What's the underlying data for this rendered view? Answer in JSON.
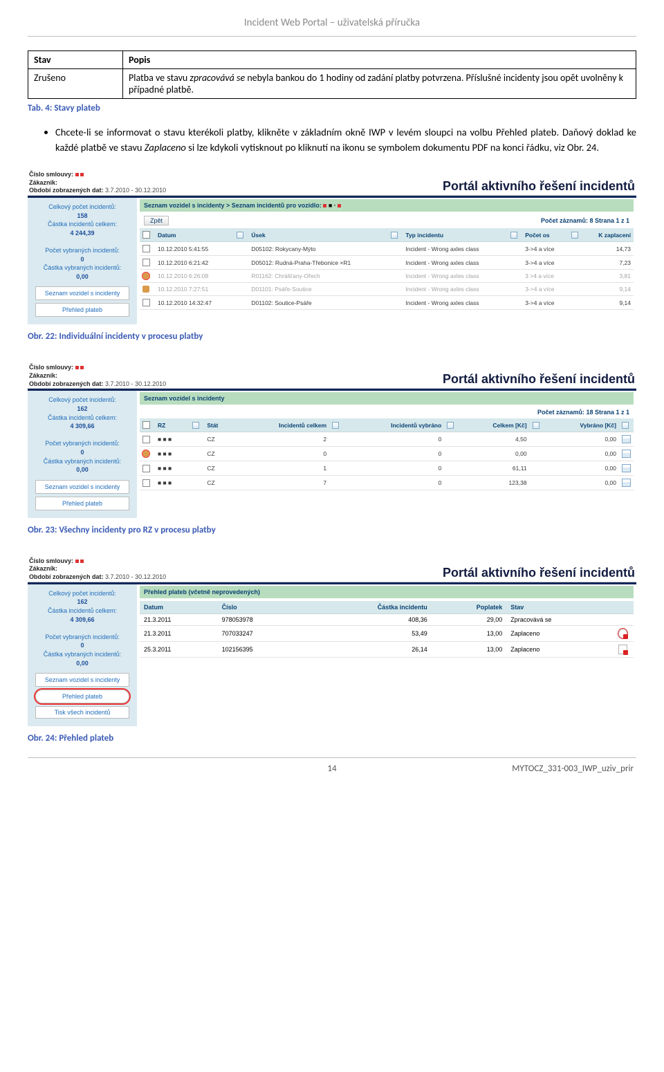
{
  "doc": {
    "header": "Incident Web Portal – uživatelská příručka",
    "page_number": "14",
    "doc_ref": "MYTOCZ_331-003_IWP_uziv_prir"
  },
  "stavy_table": {
    "type": "table",
    "headers": [
      "Stav",
      "Popis"
    ],
    "row_label": "Zrušeno",
    "row_desc_prefix": "Platba ve stavu ",
    "row_desc_em": "zpracovává se",
    "row_desc_suffix": " nebyla bankou do 1 hodiny od zadání platby potvrzena. Příslušné incidenty jsou opět uvolněny k případné platbě."
  },
  "tab_caption": "Tab. 4: Stavy plateb",
  "bullet_text_a": "Chcete-li se informovat o stavu kterékoli platby, klikněte v základním okně IWP v levém sloupci na volbu Přehled plateb. Daňový doklad ke každé platbě ve stavu ",
  "bullet_em": "Zaplaceno",
  "bullet_text_b": " si lze kdykoli vytisknout po kliknutí na ikonu se symbolem dokumentu PDF na konci řádku, viz Obr. 24.",
  "shared": {
    "portal_title": "Portál aktivního řešení incidentů",
    "meta_labels": {
      "contract": "Číslo smlouvy:",
      "customer": "Zákazník:",
      "period": "Období zobrazených dat:"
    },
    "period_value": "3.7.2010 - 30.12.2010",
    "sidebar": {
      "total_incidents_label": "Celkový počet incidentů:",
      "amount_incidents_label": "Částka incidentů celkem:",
      "selected_incidents_label": "Počet vybraných incidentů:",
      "selected_amount_label": "Částka vybraných incidentů:",
      "btn_vehicles": "Seznam vozidel s incidenty",
      "btn_overview": "Přehled plateb",
      "btn_print": "Tisk všech incidentů"
    }
  },
  "fig22": {
    "caption": "Obr. 22: Individuální incidenty v procesu platby",
    "stats": {
      "total": "158",
      "amount": "4 244,39",
      "selected": "0",
      "sel_amount": "0,00"
    },
    "bread": "Seznam vozidel s incidenty > Seznam incidentů pro vozidlo: ",
    "record_bar": {
      "back": "Zpět",
      "count": "Počet záznamů: 8 Strana 1 z 1"
    },
    "columns": [
      "",
      "Datum",
      "",
      "Úsek",
      "",
      "Typ incidentu",
      "",
      "Počet os",
      "",
      "K zaplacení"
    ],
    "rows": [
      {
        "lock": false,
        "date": "10.12.2010 5:41:55",
        "usek": "D05102: Rokycany-Mýto",
        "typ": "Incident - Wrong axles class",
        "os": "3->4 a více",
        "pay": "14,73",
        "disabled": false
      },
      {
        "lock": false,
        "date": "10.12.2010 6:21:42",
        "usek": "D05012: Rudná-Praha-Třebonice ×R1",
        "typ": "Incident - Wrong axles class",
        "os": "3->4 a více",
        "pay": "7,23",
        "disabled": false
      },
      {
        "lock": true,
        "date": "10.12.2010 6:26:08",
        "usek": "R01162: Chrášťany-Ořech",
        "typ": "Incident - Wrong axles class",
        "os": "3 >4 a více",
        "pay": "3,81",
        "disabled": true
      },
      {
        "lock": true,
        "date": "10.12.2010 7:27:51",
        "usek": "D01101: Psáře-Soutice",
        "typ": "Incident - Wrong axles class",
        "os": "3->4 a více",
        "pay": "9,14",
        "disabled": true
      },
      {
        "lock": false,
        "date": "10.12.2010 14:32:47",
        "usek": "D01102: Soutice-Psáře",
        "typ": "Incident - Wrong axles class",
        "os": "3->4 a více",
        "pay": "9,14",
        "disabled": false
      }
    ]
  },
  "fig23": {
    "caption": "Obr. 23: Všechny incidenty pro RZ v procesu platby",
    "stats": {
      "total": "162",
      "amount": "4 309,66",
      "selected": "0",
      "sel_amount": "0,00"
    },
    "bread": "Seznam vozidel s incidenty",
    "record_bar": {
      "count": "Počet záznamů: 18 Strana 1 z 1"
    },
    "columns": [
      "",
      "RZ",
      "",
      "Stát",
      "Incidentů celkem",
      "",
      "Incidentů vybráno",
      "",
      "Celkem [Kč]",
      "",
      "Vybráno [Kč]",
      ""
    ],
    "rows": [
      {
        "lock": false,
        "stat": "CZ",
        "cel": "2",
        "vyb": "0",
        "ck": "4,50",
        "vk": "0,00"
      },
      {
        "lock": true,
        "stat": "CZ",
        "cel": "0",
        "vyb": "0",
        "ck": "0,00",
        "vk": "0,00"
      },
      {
        "lock": false,
        "stat": "CZ",
        "cel": "1",
        "vyb": "0",
        "ck": "61,11",
        "vk": "0,00"
      },
      {
        "lock": false,
        "stat": "CZ",
        "cel": "7",
        "vyb": "0",
        "ck": "123,38",
        "vk": "0,00"
      }
    ]
  },
  "fig24": {
    "caption": "Obr. 24: Přehled plateb",
    "stats": {
      "total": "162",
      "amount": "4 309,66",
      "selected": "0",
      "sel_amount": "0,00"
    },
    "bread": "Přehled plateb (včetně neprovedených)",
    "columns": [
      "Datum",
      "Číslo",
      "Částka incidentu",
      "Poplatek",
      "Stav",
      ""
    ],
    "rows": [
      {
        "date": "21.3.2011",
        "num": "978053978",
        "amt": "408,36",
        "fee": "29,00",
        "stav": "Zpracovává se",
        "pdf": false
      },
      {
        "date": "21.3.2011",
        "num": "707033247",
        "amt": "53,49",
        "fee": "13,00",
        "stav": "Zaplaceno",
        "pdf": true,
        "circled": true
      },
      {
        "date": "25.3.2011",
        "num": "102156395",
        "amt": "26,14",
        "fee": "13,00",
        "stav": "Zaplaceno",
        "pdf": true,
        "circled": false
      }
    ]
  },
  "colors": {
    "caption": "#3b5bb5",
    "sidebar_bg": "#dbeaf0",
    "header_row": "#d6e8eb",
    "bread_bg": "#b8ddbe",
    "link": "#0a4173",
    "disabled": "#a3a3a3",
    "circled": "#e33"
  }
}
